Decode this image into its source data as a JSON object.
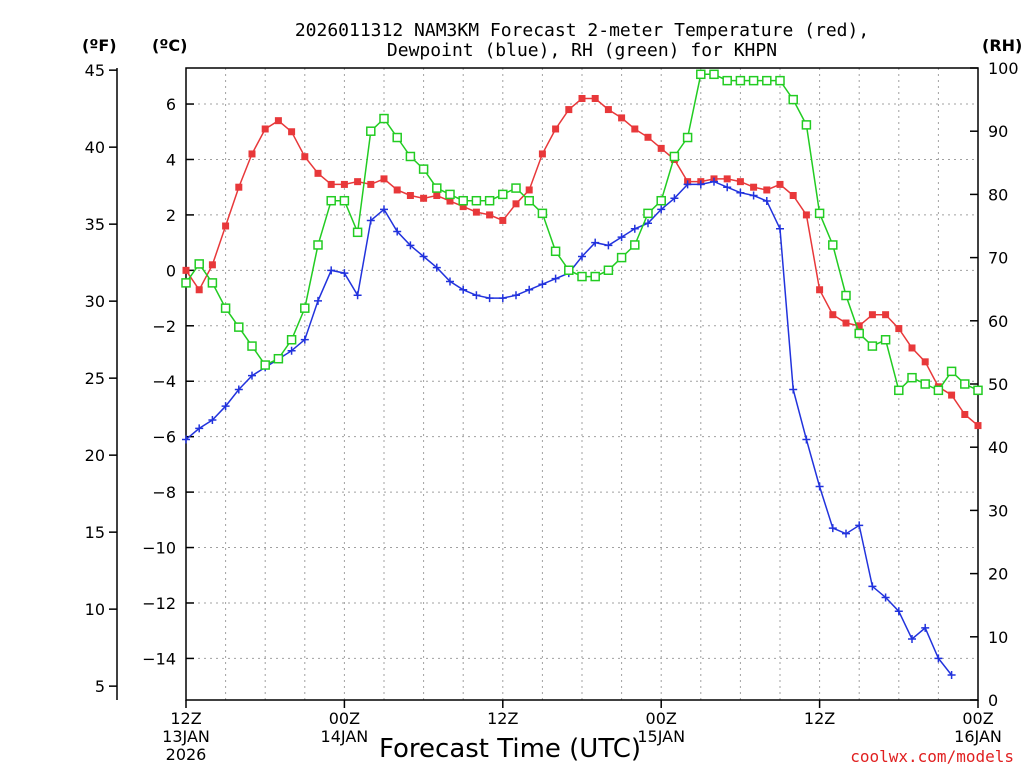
{
  "chart_data": {
    "type": "line",
    "title_line1": "2026011312 NAM3KM Forecast 2-meter Temperature (red),",
    "title_line2": "Dewpoint (blue), RH (green) for KHPN",
    "xlabel": "Forecast Time (UTC)",
    "credit": "coolwx.com/models",
    "units": {
      "fahrenheit": "(ºF)",
      "celsius": "(ºC)",
      "rh": "(RH)"
    },
    "x_range_hours": [
      0,
      60
    ],
    "y_celsius_range": [
      -15.5,
      7.3
    ],
    "rh_range": [
      0,
      100
    ],
    "x_ticks": [
      {
        "hour": 0,
        "line1": "12Z",
        "line2": "13JAN",
        "line3": "2026"
      },
      {
        "hour": 12,
        "line1": "00Z",
        "line2": "14JAN",
        "line3": ""
      },
      {
        "hour": 24,
        "line1": "12Z",
        "line2": "",
        "line3": ""
      },
      {
        "hour": 36,
        "line1": "00Z",
        "line2": "15JAN",
        "line3": ""
      },
      {
        "hour": 48,
        "line1": "12Z",
        "line2": "",
        "line3": ""
      },
      {
        "hour": 60,
        "line1": "00Z",
        "line2": "16JAN",
        "line3": ""
      }
    ],
    "c_ticks": [
      {
        "value": 6,
        "label": "6"
      },
      {
        "value": 4,
        "label": "4"
      },
      {
        "value": 2,
        "label": "2"
      },
      {
        "value": 0,
        "label": "0"
      },
      {
        "value": -2,
        "label": "−2"
      },
      {
        "value": -4,
        "label": "−4"
      },
      {
        "value": -6,
        "label": "−6"
      },
      {
        "value": -8,
        "label": "−8"
      },
      {
        "value": -10,
        "label": "−10"
      },
      {
        "value": -12,
        "label": "−12"
      },
      {
        "value": -14,
        "label": "−14"
      }
    ],
    "f_ticks": [
      {
        "value": 45,
        "label": "45"
      },
      {
        "value": 40,
        "label": "40"
      },
      {
        "value": 35,
        "label": "35"
      },
      {
        "value": 30,
        "label": "30"
      },
      {
        "value": 25,
        "label": "25"
      },
      {
        "value": 20,
        "label": "20"
      },
      {
        "value": 15,
        "label": "15"
      },
      {
        "value": 10,
        "label": "10"
      },
      {
        "value": 5,
        "label": "5"
      }
    ],
    "rh_ticks": [
      {
        "value": 100,
        "label": "100"
      },
      {
        "value": 90,
        "label": "90"
      },
      {
        "value": 80,
        "label": "80"
      },
      {
        "value": 70,
        "label": "70"
      },
      {
        "value": 60,
        "label": "60"
      },
      {
        "value": 50,
        "label": "50"
      },
      {
        "value": 40,
        "label": "40"
      },
      {
        "value": 30,
        "label": "30"
      },
      {
        "value": 20,
        "label": "20"
      },
      {
        "value": 10,
        "label": "10"
      },
      {
        "value": 0,
        "label": "0"
      }
    ],
    "series": [
      {
        "name": "2-meter Temperature (°C)",
        "axis": "celsius",
        "color": "#e8383a",
        "marker": "filled-square",
        "points": [
          [
            0,
            0.0
          ],
          [
            1,
            -0.7
          ],
          [
            2,
            0.2
          ],
          [
            3,
            1.6
          ],
          [
            4,
            3.0
          ],
          [
            5,
            4.2
          ],
          [
            6,
            5.1
          ],
          [
            7,
            5.4
          ],
          [
            8,
            5.0
          ],
          [
            9,
            4.1
          ],
          [
            10,
            3.5
          ],
          [
            11,
            3.1
          ],
          [
            12,
            3.1
          ],
          [
            13,
            3.2
          ],
          [
            14,
            3.1
          ],
          [
            15,
            3.3
          ],
          [
            16,
            2.9
          ],
          [
            17,
            2.7
          ],
          [
            18,
            2.6
          ],
          [
            19,
            2.7
          ],
          [
            20,
            2.5
          ],
          [
            21,
            2.3
          ],
          [
            22,
            2.1
          ],
          [
            23,
            2.0
          ],
          [
            24,
            1.8
          ],
          [
            25,
            2.4
          ],
          [
            26,
            2.9
          ],
          [
            27,
            4.2
          ],
          [
            28,
            5.1
          ],
          [
            29,
            5.8
          ],
          [
            30,
            6.2
          ],
          [
            31,
            6.2
          ],
          [
            32,
            5.8
          ],
          [
            33,
            5.5
          ],
          [
            34,
            5.1
          ],
          [
            35,
            4.8
          ],
          [
            36,
            4.4
          ],
          [
            37,
            4.0
          ],
          [
            38,
            3.2
          ],
          [
            39,
            3.2
          ],
          [
            40,
            3.3
          ],
          [
            41,
            3.3
          ],
          [
            42,
            3.2
          ],
          [
            43,
            3.0
          ],
          [
            44,
            2.9
          ],
          [
            45,
            3.1
          ],
          [
            46,
            2.7
          ],
          [
            47,
            2.0
          ],
          [
            48,
            -0.7
          ],
          [
            49,
            -1.6
          ],
          [
            50,
            -1.9
          ],
          [
            51,
            -2.0
          ],
          [
            52,
            -1.6
          ],
          [
            53,
            -1.6
          ],
          [
            54,
            -2.1
          ],
          [
            55,
            -2.8
          ],
          [
            56,
            -3.3
          ],
          [
            57,
            -4.2
          ],
          [
            58,
            -4.5
          ],
          [
            59,
            -5.2
          ],
          [
            60,
            -5.6
          ]
        ]
      },
      {
        "name": "Dewpoint (°C)",
        "axis": "celsius",
        "color": "#2233dd",
        "marker": "plus",
        "points": [
          [
            0,
            -6.1
          ],
          [
            1,
            -5.7
          ],
          [
            2,
            -5.4
          ],
          [
            3,
            -4.9
          ],
          [
            4,
            -4.3
          ],
          [
            5,
            -3.8
          ],
          [
            6,
            -3.5
          ],
          [
            7,
            -3.2
          ],
          [
            8,
            -2.9
          ],
          [
            9,
            -2.5
          ],
          [
            10,
            -1.1
          ],
          [
            11,
            0.0
          ],
          [
            12,
            -0.1
          ],
          [
            13,
            -0.9
          ],
          [
            14,
            1.8
          ],
          [
            15,
            2.2
          ],
          [
            16,
            1.4
          ],
          [
            17,
            0.9
          ],
          [
            18,
            0.5
          ],
          [
            19,
            0.1
          ],
          [
            20,
            -0.4
          ],
          [
            21,
            -0.7
          ],
          [
            22,
            -0.9
          ],
          [
            23,
            -1.0
          ],
          [
            24,
            -1.0
          ],
          [
            25,
            -0.9
          ],
          [
            26,
            -0.7
          ],
          [
            27,
            -0.5
          ],
          [
            28,
            -0.3
          ],
          [
            29,
            -0.1
          ],
          [
            30,
            0.5
          ],
          [
            31,
            1.0
          ],
          [
            32,
            0.9
          ],
          [
            33,
            1.2
          ],
          [
            34,
            1.5
          ],
          [
            35,
            1.7
          ],
          [
            36,
            2.2
          ],
          [
            37,
            2.6
          ],
          [
            38,
            3.1
          ],
          [
            39,
            3.1
          ],
          [
            40,
            3.2
          ],
          [
            41,
            3.0
          ],
          [
            42,
            2.8
          ],
          [
            43,
            2.7
          ],
          [
            44,
            2.5
          ],
          [
            45,
            1.5
          ],
          [
            46,
            -4.3
          ],
          [
            47,
            -6.1
          ],
          [
            48,
            -7.8
          ],
          [
            49,
            -9.3
          ],
          [
            50,
            -9.5
          ],
          [
            51,
            -9.2
          ],
          [
            52,
            -11.4
          ],
          [
            53,
            -11.8
          ],
          [
            54,
            -12.3
          ],
          [
            55,
            -13.3
          ],
          [
            56,
            -12.9
          ],
          [
            57,
            -14.0
          ],
          [
            58,
            -14.6
          ]
        ]
      },
      {
        "name": "RH (%)",
        "axis": "rh",
        "color": "#22cc22",
        "marker": "open-square",
        "points": [
          [
            0,
            66
          ],
          [
            1,
            69
          ],
          [
            2,
            66
          ],
          [
            3,
            62
          ],
          [
            4,
            59
          ],
          [
            5,
            56
          ],
          [
            6,
            53
          ],
          [
            7,
            54
          ],
          [
            8,
            57
          ],
          [
            9,
            62
          ],
          [
            10,
            72
          ],
          [
            11,
            79
          ],
          [
            12,
            79
          ],
          [
            13,
            74
          ],
          [
            14,
            90
          ],
          [
            15,
            92
          ],
          [
            16,
            89
          ],
          [
            17,
            86
          ],
          [
            18,
            84
          ],
          [
            19,
            81
          ],
          [
            20,
            80
          ],
          [
            21,
            79
          ],
          [
            22,
            79
          ],
          [
            23,
            79
          ],
          [
            24,
            80
          ],
          [
            25,
            81
          ],
          [
            26,
            79
          ],
          [
            27,
            77
          ],
          [
            28,
            71
          ],
          [
            29,
            68
          ],
          [
            30,
            67
          ],
          [
            31,
            67
          ],
          [
            32,
            68
          ],
          [
            33,
            70
          ],
          [
            34,
            72
          ],
          [
            35,
            77
          ],
          [
            36,
            79
          ],
          [
            37,
            86
          ],
          [
            38,
            89
          ],
          [
            39,
            99
          ],
          [
            40,
            99
          ],
          [
            41,
            98
          ],
          [
            42,
            98
          ],
          [
            43,
            98
          ],
          [
            44,
            98
          ],
          [
            45,
            98
          ],
          [
            46,
            95
          ],
          [
            47,
            91
          ],
          [
            48,
            77
          ],
          [
            49,
            72
          ],
          [
            50,
            64
          ],
          [
            51,
            58
          ],
          [
            52,
            56
          ],
          [
            53,
            57
          ],
          [
            54,
            49
          ],
          [
            55,
            51
          ],
          [
            56,
            50
          ],
          [
            57,
            49
          ],
          [
            58,
            52
          ],
          [
            59,
            50
          ],
          [
            60,
            49
          ]
        ]
      }
    ]
  }
}
